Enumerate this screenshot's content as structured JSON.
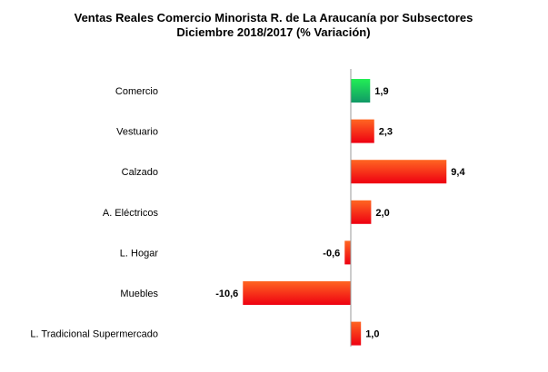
{
  "chart_data": {
    "type": "bar",
    "orientation": "horizontal",
    "title": [
      "Ventas Reales Comercio Minorista R. de La Araucanía por Subsectores",
      "Diciembre 2018/2017 (% Variación)"
    ],
    "categories": [
      "Comercio",
      "Vestuario",
      "Calzado",
      "A. Eléctricos",
      "L. Hogar",
      "Muebles",
      "L. Tradicional Supermercado"
    ],
    "values": [
      1.9,
      2.3,
      9.4,
      2.0,
      -0.6,
      -10.6,
      1.0
    ],
    "value_labels": [
      "1,9",
      "2,3",
      "9,4",
      "2,0",
      "-0,6",
      "-10,6",
      "1,0"
    ],
    "highlight_index": 0,
    "colors": {
      "highlight_top": "#22ee55",
      "highlight_bottom": "#119966",
      "bar_top": "#ff6622",
      "bar_bottom": "#ee0011",
      "axis": "#999999"
    },
    "grid": false,
    "legend": "none"
  }
}
